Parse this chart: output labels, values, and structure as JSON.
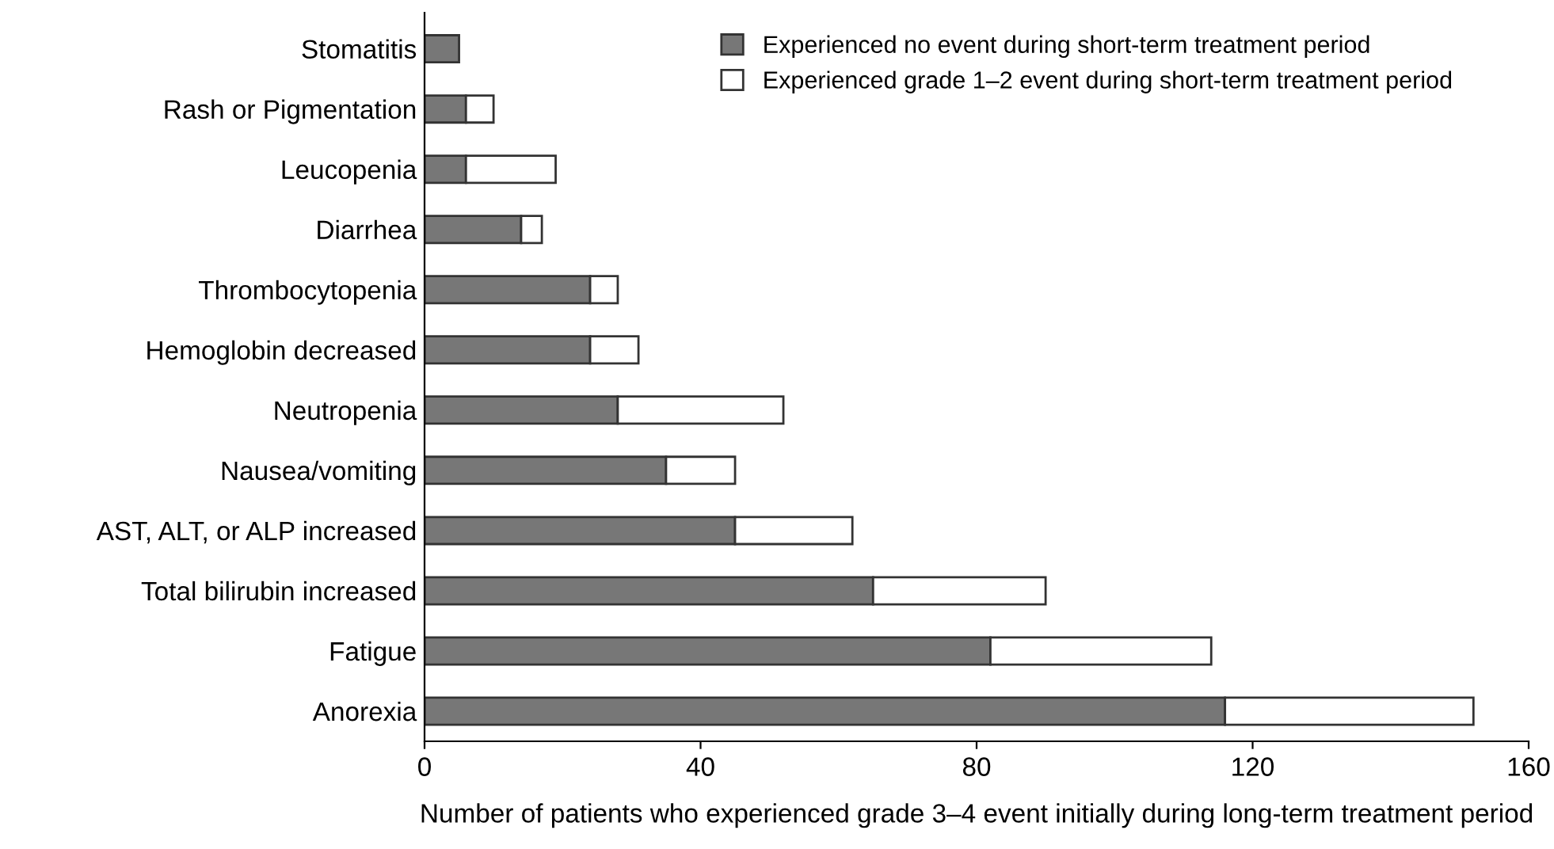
{
  "chart_data": {
    "type": "bar",
    "orientation": "horizontal",
    "stacked": true,
    "categories": [
      "Stomatitis",
      "Rash or Pigmentation",
      "Leucopenia",
      "Diarrhea",
      "Thrombocytopenia",
      "Hemoglobin decreased",
      "Neutropenia",
      "Nausea/vomiting",
      "AST, ALT, or ALP increased",
      "Total bilirubin increased",
      "Fatigue",
      "Anorexia"
    ],
    "series": [
      {
        "name": "Experienced no event during short-term treatment period",
        "color": "#777777",
        "values": [
          5,
          6,
          6,
          14,
          24,
          24,
          28,
          35,
          45,
          65,
          82,
          116
        ]
      },
      {
        "name": "Experienced grade 1–2 event during short-term treatment period",
        "color": "#ffffff",
        "values": [
          null,
          4,
          13,
          3,
          4,
          7,
          24,
          10,
          17,
          25,
          32,
          36
        ]
      }
    ],
    "xlabel": "Number of patients who experienced grade 3–4 event initially during long-term treatment period",
    "xlim": [
      0,
      160
    ],
    "xticks": [
      0,
      40,
      80,
      120,
      160
    ],
    "grid": false,
    "legend": "top"
  }
}
